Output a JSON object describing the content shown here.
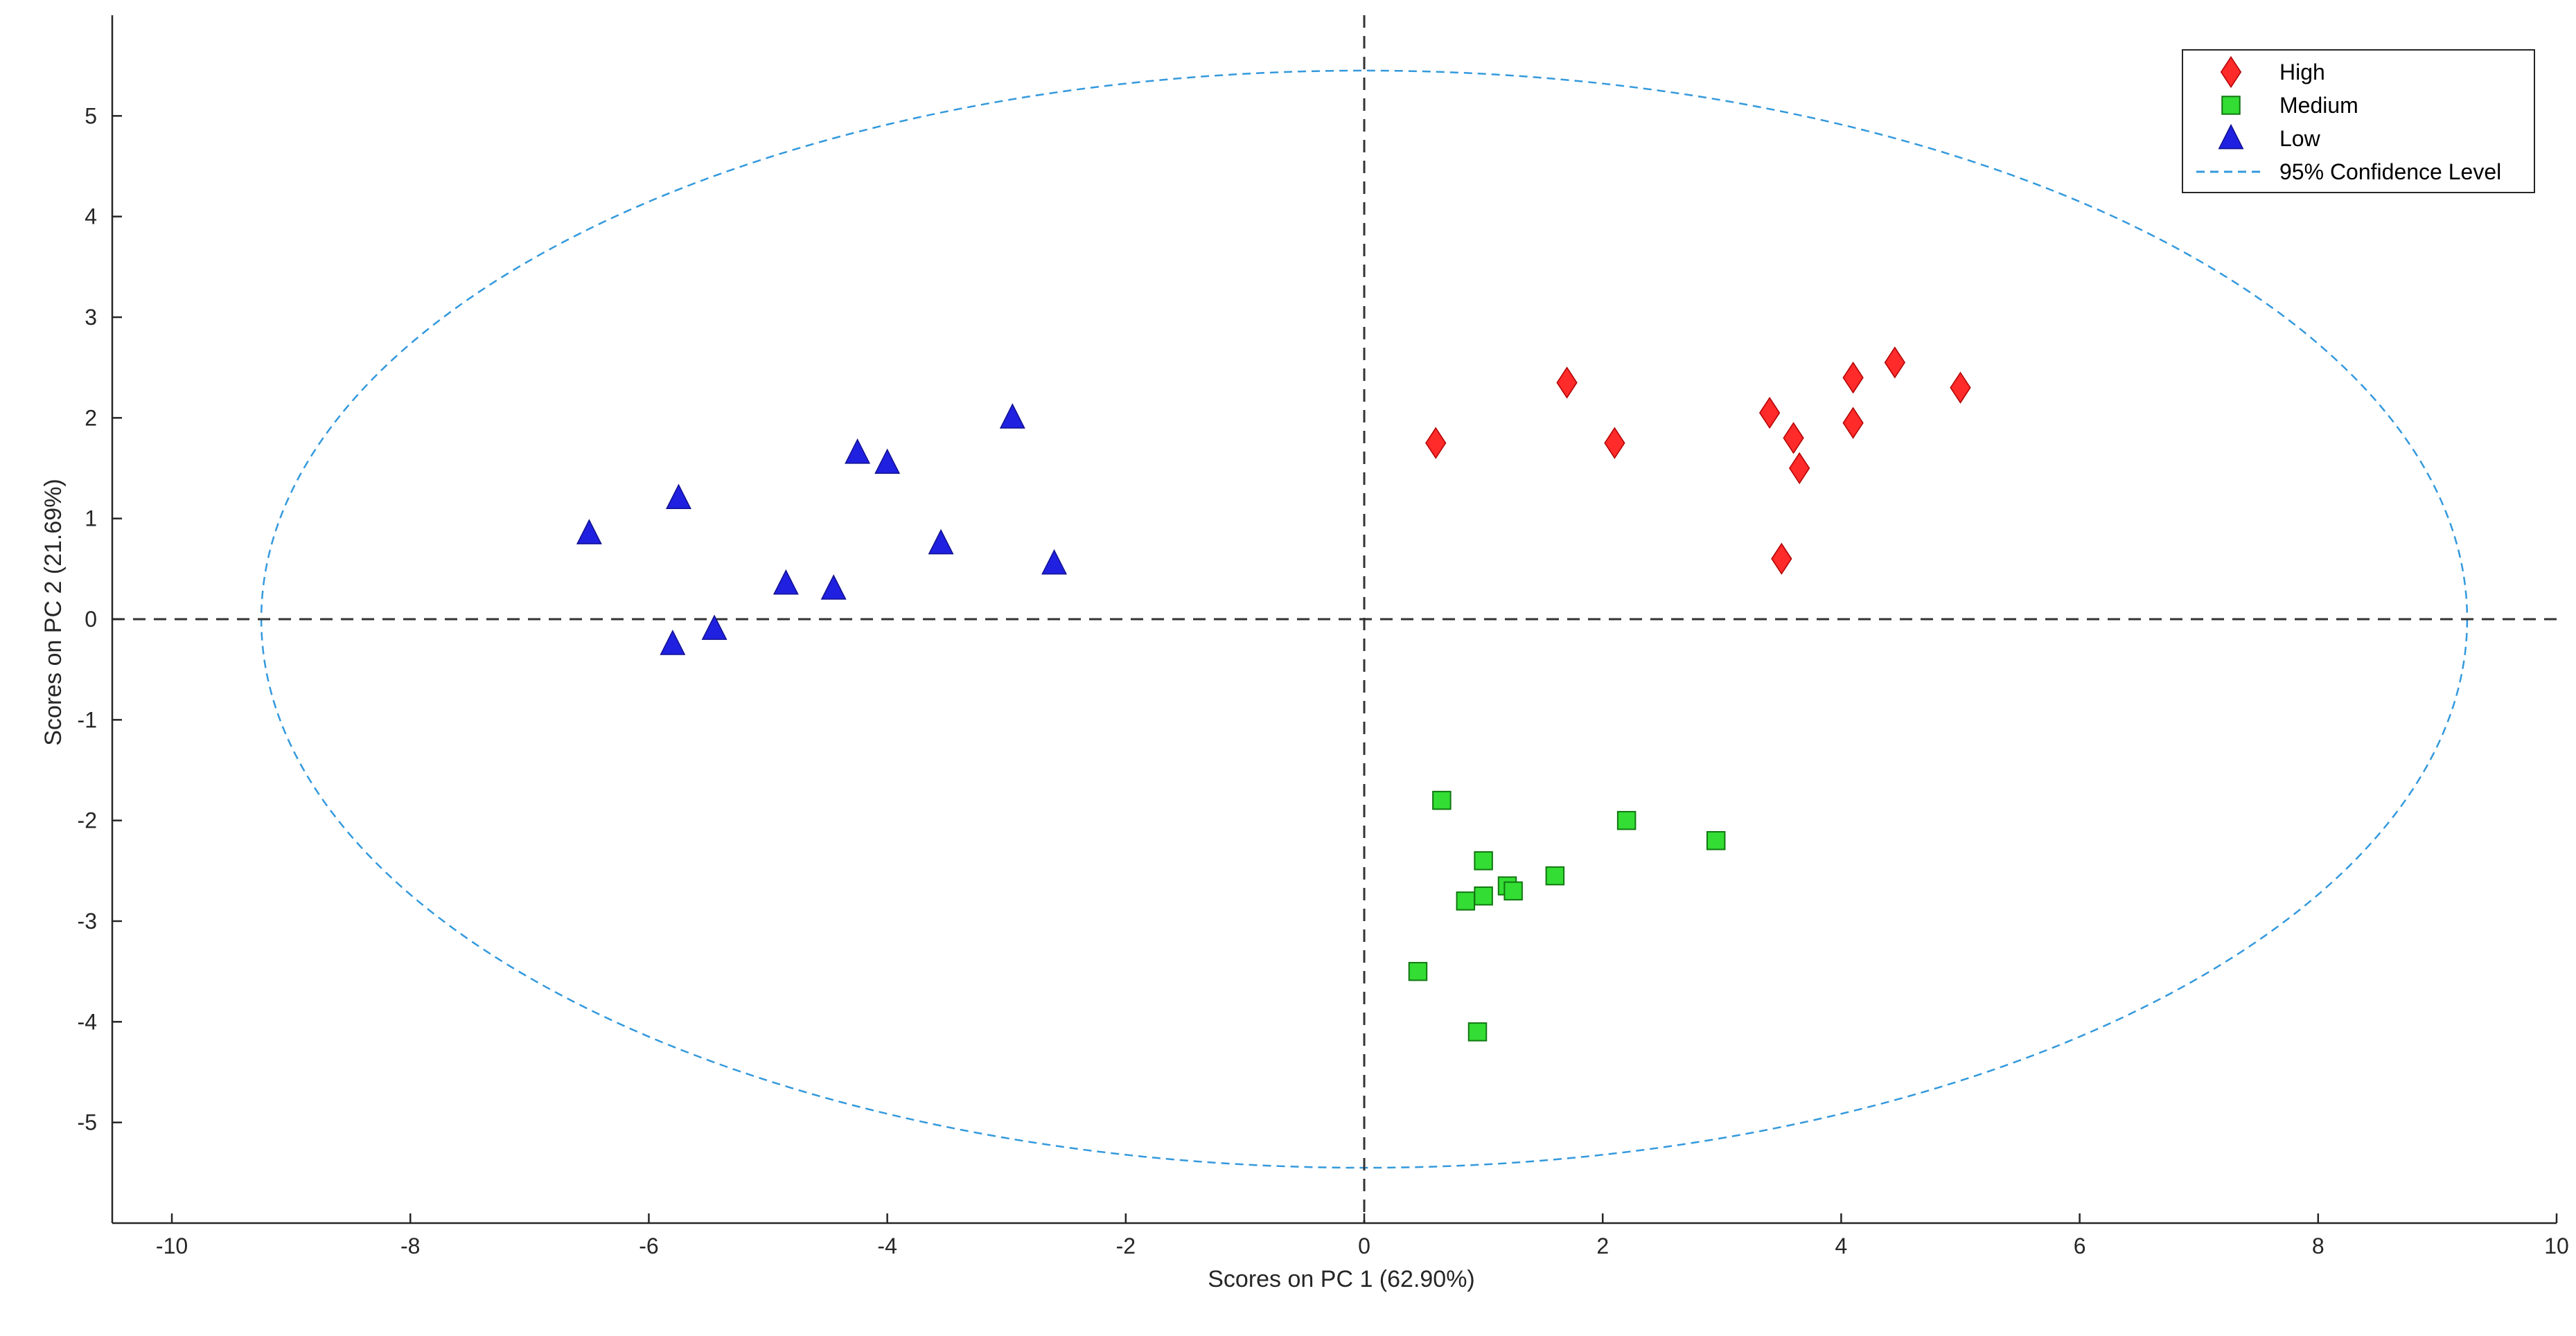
{
  "chart_data": {
    "type": "scatter",
    "title": "",
    "xlabel": "Scores on PC 1 (62.90%)",
    "ylabel": "Scores on PC 2 (21.69%)",
    "xlim": [
      -10.5,
      10
    ],
    "ylim": [
      -6,
      6
    ],
    "xticks": [
      "-10",
      "-8",
      "-6",
      "-4",
      "-2",
      "0",
      "2",
      "4",
      "6",
      "8",
      "10"
    ],
    "yticks": [
      "5",
      "4",
      "3",
      "2",
      "1",
      "0",
      "-1",
      "-2",
      "-3",
      "-4",
      "-5"
    ],
    "grid": false,
    "legend_position": "top-right",
    "reference_lines": {
      "x": 0,
      "y": 0,
      "color": "#000000",
      "style": "dashed"
    },
    "series": [
      {
        "name": "High",
        "marker": "diamond",
        "color": "#ff2a2a",
        "points": [
          {
            "x": 0.6,
            "y": 1.75
          },
          {
            "x": 1.7,
            "y": 2.35
          },
          {
            "x": 2.1,
            "y": 1.75
          },
          {
            "x": 3.4,
            "y": 2.05
          },
          {
            "x": 3.5,
            "y": 0.6
          },
          {
            "x": 3.6,
            "y": 1.8
          },
          {
            "x": 3.65,
            "y": 1.5
          },
          {
            "x": 4.1,
            "y": 2.4
          },
          {
            "x": 4.1,
            "y": 1.95
          },
          {
            "x": 4.45,
            "y": 2.55
          },
          {
            "x": 5.0,
            "y": 2.3
          }
        ]
      },
      {
        "name": "Medium",
        "marker": "square",
        "color": "#33dd33",
        "points": [
          {
            "x": 0.45,
            "y": -3.5
          },
          {
            "x": 0.65,
            "y": -1.8
          },
          {
            "x": 0.85,
            "y": -2.8
          },
          {
            "x": 0.95,
            "y": -4.1
          },
          {
            "x": 1.0,
            "y": -2.4
          },
          {
            "x": 1.0,
            "y": -2.75
          },
          {
            "x": 1.2,
            "y": -2.65
          },
          {
            "x": 1.25,
            "y": -2.7
          },
          {
            "x": 1.6,
            "y": -2.55
          },
          {
            "x": 2.2,
            "y": -2.0
          },
          {
            "x": 2.95,
            "y": -2.2
          }
        ]
      },
      {
        "name": "Low",
        "marker": "triangle",
        "color": "#2020e0",
        "points": [
          {
            "x": -6.5,
            "y": 0.85
          },
          {
            "x": -5.8,
            "y": -0.25
          },
          {
            "x": -5.75,
            "y": 1.2
          },
          {
            "x": -5.45,
            "y": -0.1
          },
          {
            "x": -4.85,
            "y": 0.35
          },
          {
            "x": -4.45,
            "y": 0.3
          },
          {
            "x": -4.25,
            "y": 1.65
          },
          {
            "x": -4.0,
            "y": 1.55
          },
          {
            "x": -3.55,
            "y": 0.75
          },
          {
            "x": -2.95,
            "y": 2.0
          },
          {
            "x": -2.6,
            "y": 0.55
          }
        ]
      },
      {
        "name": "95% Confidence Level",
        "type": "ellipse",
        "color": "#3399dd",
        "center": {
          "x": 0,
          "y": 0
        },
        "radius_x": 9.25,
        "radius_y": 5.45
      }
    ]
  }
}
